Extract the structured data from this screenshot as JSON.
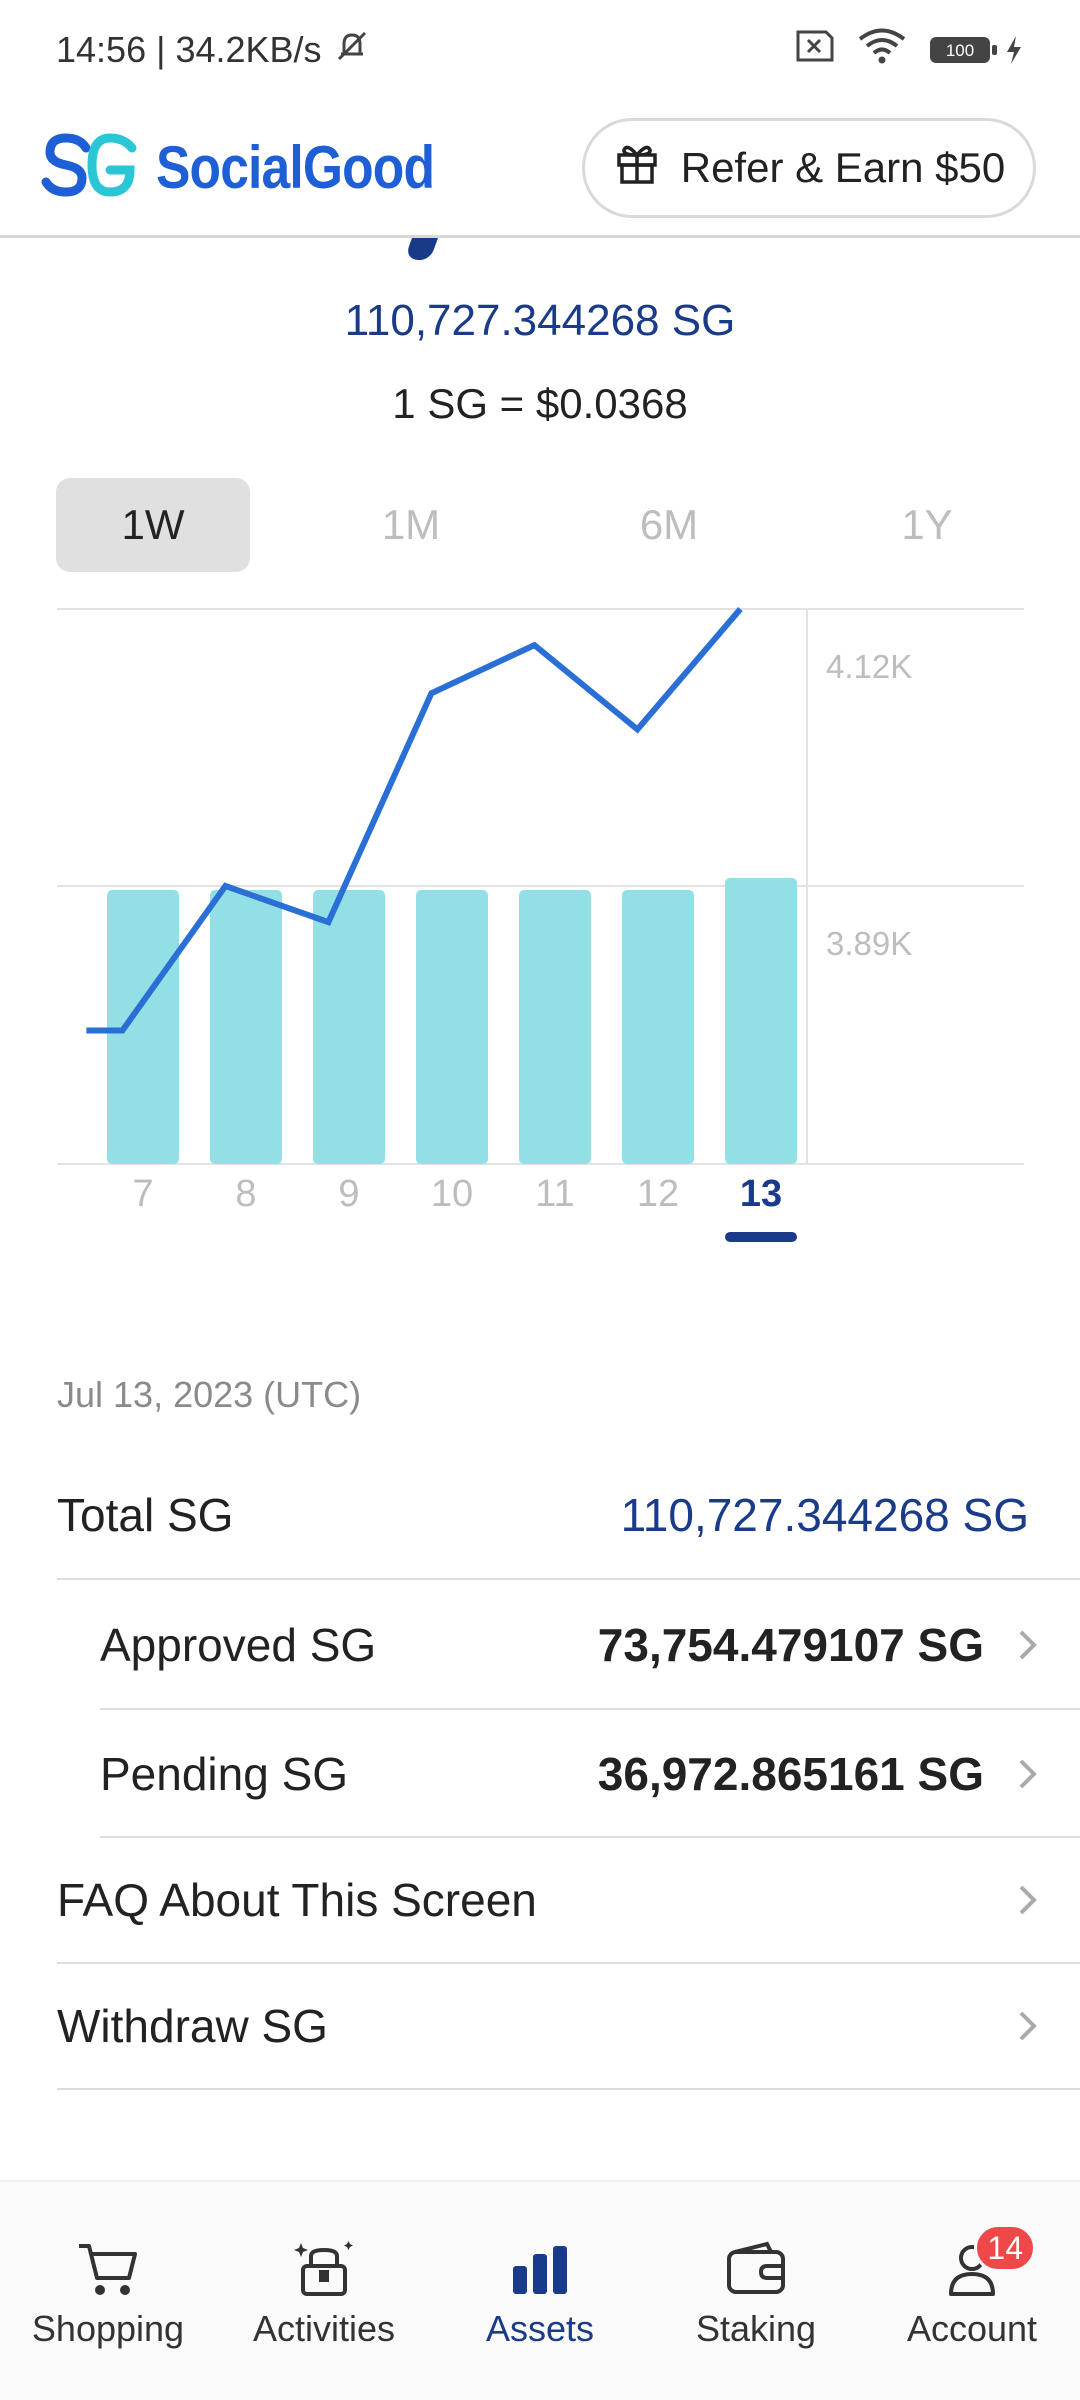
{
  "status_bar": {
    "time_speed": "14:56 | 34.2KB/s",
    "battery": "100"
  },
  "header": {
    "brand": "SocialGood",
    "refer_label": "Refer & Earn $50"
  },
  "summary": {
    "total_amount": "110,727.344268 SG",
    "rate": "1 SG = $0.0368"
  },
  "periods": [
    {
      "label": "1W",
      "active": true
    },
    {
      "label": "1M",
      "active": false
    },
    {
      "label": "6M",
      "active": false
    },
    {
      "label": "1Y",
      "active": false
    }
  ],
  "chart_data": {
    "type": "bar",
    "categories": [
      "7",
      "8",
      "9",
      "10",
      "11",
      "12",
      "13"
    ],
    "selected_category": "13",
    "y_tick_labels": [
      "4.12K",
      "3.89K"
    ],
    "y_ticks": [
      4120,
      3890
    ],
    "bar_values": [
      3.89,
      3.89,
      3.89,
      3.89,
      3.89,
      3.89,
      3.9
    ],
    "line_values": [
      3.77,
      3.77,
      3.89,
      3.86,
      4.05,
      4.09,
      4.02,
      4.12
    ],
    "line_value_x": [
      6.45,
      6.8,
      7.8,
      8.8,
      9.8,
      10.8,
      11.8,
      12.8
    ],
    "bar_color": "#93dfe6",
    "line_color": "#2a6fd6",
    "selected_color": "#1a3a8a"
  },
  "details": {
    "date": "Jul 13, 2023 (UTC)",
    "total_label": "Total SG",
    "total_value": "110,727.344268 SG",
    "approved_label": "Approved SG",
    "approved_value": "73,754.479107 SG",
    "pending_label": "Pending SG",
    "pending_value": "36,972.865161 SG",
    "faq_label": "FAQ About This Screen",
    "withdraw_label": "Withdraw SG"
  },
  "nav": {
    "items": [
      {
        "label": "Shopping",
        "icon": "cart-icon"
      },
      {
        "label": "Activities",
        "icon": "gift-box-icon"
      },
      {
        "label": "Assets",
        "icon": "bar-chart-icon",
        "active": true
      },
      {
        "label": "Staking",
        "icon": "wallet-icon"
      },
      {
        "label": "Account",
        "icon": "person-icon",
        "badge": "14"
      }
    ]
  }
}
